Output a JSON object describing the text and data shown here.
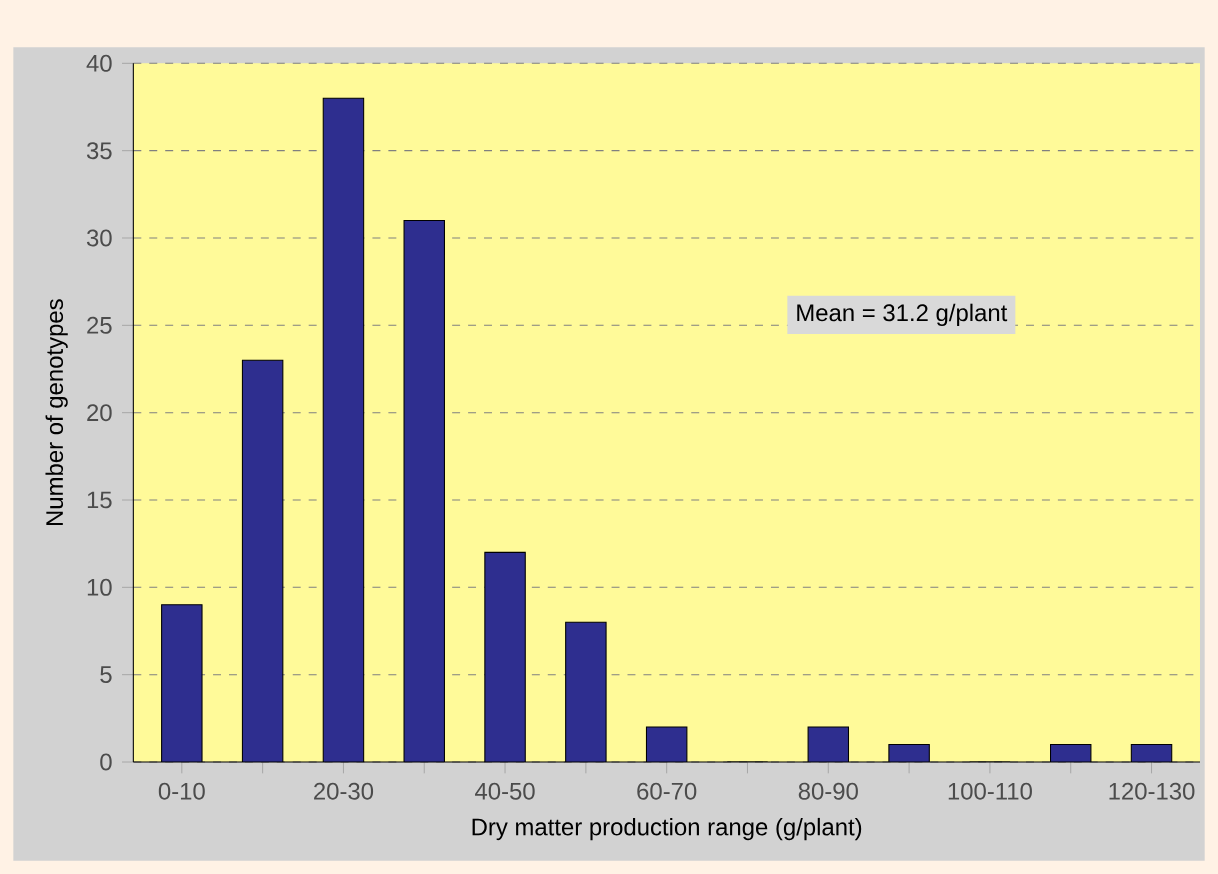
{
  "chart_data": {
    "type": "bar",
    "xlabel": "Dry matter production range  (g/plant)",
    "ylabel": "Number of genotypes",
    "categories": [
      "0-10",
      null,
      "20-30",
      null,
      "40-50",
      null,
      "60-70",
      null,
      "80-90",
      null,
      "100-110",
      null,
      "120-130"
    ],
    "values": [
      9,
      23,
      38,
      31,
      12,
      8,
      2,
      0,
      2,
      1,
      0,
      1,
      1
    ],
    "color": "#2e2e8f",
    "ylim": [
      0,
      40
    ],
    "yticks": [
      0,
      5,
      10,
      15,
      20,
      25,
      30,
      35,
      40
    ],
    "grid": "y",
    "annotations": [
      "Mean = 31.2 g/plant"
    ]
  }
}
